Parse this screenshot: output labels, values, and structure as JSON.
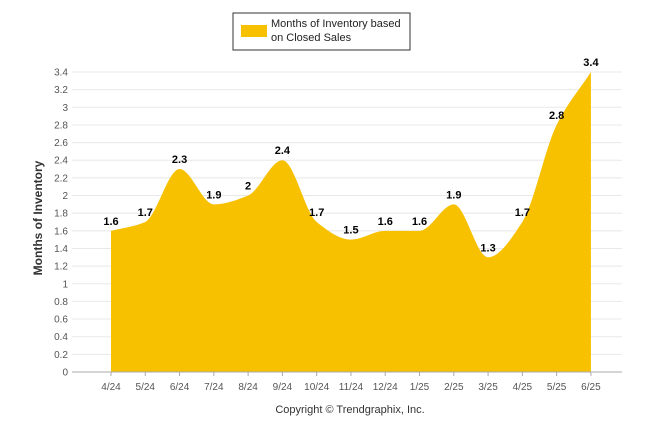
{
  "chart_data": {
    "type": "area",
    "categories": [
      "4/24",
      "5/24",
      "6/24",
      "7/24",
      "8/24",
      "9/24",
      "10/24",
      "11/24",
      "12/24",
      "1/25",
      "2/25",
      "3/25",
      "4/25",
      "5/25",
      "6/25"
    ],
    "series": [
      {
        "name": "Months of Inventory based on Closed Sales",
        "name_lines": [
          "Months of Inventory based",
          "on Closed Sales"
        ],
        "values": [
          1.6,
          1.7,
          2.3,
          1.9,
          2,
          2.4,
          1.7,
          1.5,
          1.6,
          1.6,
          1.9,
          1.3,
          1.7,
          2.8,
          3.4
        ],
        "color": "#F7C100"
      }
    ],
    "data_labels": [
      "1.6",
      "1.7",
      "2.3",
      "1.9",
      "2",
      "2.4",
      "1.7",
      "1.5",
      "1.6",
      "1.6",
      "1.9",
      "1.3",
      "1.7",
      "2.8",
      "3.4"
    ],
    "y_ticks": [
      "0",
      "0.2",
      "0.4",
      "0.6",
      "0.8",
      "1",
      "1.2",
      "1.4",
      "1.6",
      "1.8",
      "2",
      "2.2",
      "2.4",
      "2.6",
      "2.8",
      "3",
      "3.2",
      "3.4"
    ],
    "ylim": [
      0,
      3.4
    ],
    "ylabel": "Months of Inventory",
    "xlabel": "",
    "title": "",
    "legend_position": "top-center",
    "grid": true,
    "footer": "Copyright © Trendgraphix, Inc."
  }
}
